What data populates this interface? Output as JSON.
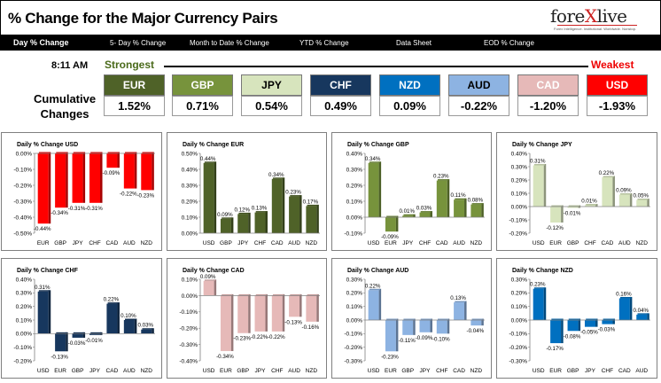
{
  "header": {
    "title": "% Change for the Major Currency Pairs",
    "logo": {
      "pre": "fore",
      "x": "X",
      "post": "live",
      "tagline": "Forex Intelligence. Institutional. Worldwide. Nonstop."
    }
  },
  "tabs": [
    {
      "label": "Day % Change",
      "active": true
    },
    {
      "label": "5- Day % Change"
    },
    {
      "label": "Month to Date % Change"
    },
    {
      "label": "YTD % Change"
    },
    {
      "label": "Data Sheet"
    },
    {
      "label": "EOD % Change"
    }
  ],
  "time": "8:11 AM",
  "strongest_label": "Strongest",
  "weakest_label": "Weakest",
  "cumulative_label": [
    "Cumulative",
    "Changes"
  ],
  "currencies": [
    {
      "code": "EUR",
      "value": "1.52%",
      "bg": "#4f6228",
      "fg": "#ffffff"
    },
    {
      "code": "GBP",
      "value": "0.71%",
      "bg": "#77933c",
      "fg": "#ffffff"
    },
    {
      "code": "JPY",
      "value": "0.54%",
      "bg": "#d7e4bd",
      "fg": "#000000"
    },
    {
      "code": "CHF",
      "value": "0.49%",
      "bg": "#17375e",
      "fg": "#ffffff"
    },
    {
      "code": "NZD",
      "value": "0.09%",
      "bg": "#0070c0",
      "fg": "#ffffff"
    },
    {
      "code": "AUD",
      "value": "-0.22%",
      "bg": "#8db3e2",
      "fg": "#000000"
    },
    {
      "code": "CAD",
      "value": "-1.20%",
      "bg": "#e6b9b8",
      "fg": "#ffffff"
    },
    {
      "code": "USD",
      "value": "-1.93%",
      "bg": "#ff0000",
      "fg": "#ffffff"
    }
  ],
  "colors": {
    "green": "#4f6228",
    "mid_green": "#77933c",
    "light_green": "#d7e4bd",
    "navy": "#17375e",
    "blue": "#0070c0",
    "light_blue": "#8db3e2",
    "pink": "#e6b9b8",
    "red": "#ff0000"
  },
  "chart_data": [
    {
      "type": "bar",
      "title": "Daily % Change USD",
      "categories": [
        "EUR",
        "GBP",
        "JPY",
        "CHF",
        "CAD",
        "AUD",
        "NZD"
      ],
      "values": [
        -0.44,
        -0.34,
        -0.31,
        -0.31,
        -0.09,
        -0.22,
        -0.23
      ],
      "labels": [
        "-0.44%",
        "-0.34%",
        "-0.31%",
        "-0.31%",
        "-0.09%",
        "-0.22%",
        "-0.23%"
      ],
      "ylim": [
        -0.5,
        0
      ],
      "ticks": [
        "0.00%",
        "-0.10%",
        "-0.20%",
        "-0.30%",
        "-0.40%",
        "-0.50%"
      ],
      "color": "#ff0000"
    },
    {
      "type": "bar",
      "title": "Daily % Change EUR",
      "categories": [
        "USD",
        "GBP",
        "JPY",
        "CHF",
        "CAD",
        "AUD",
        "NZD"
      ],
      "values": [
        0.44,
        0.09,
        0.12,
        0.13,
        0.34,
        0.23,
        0.17
      ],
      "labels": [
        "0.44%",
        "0.09%",
        "0.12%",
        "0.13%",
        "0.34%",
        "0.23%",
        "0.17%"
      ],
      "ylim": [
        0,
        0.5
      ],
      "ticks": [
        "0.50%",
        "0.40%",
        "0.30%",
        "0.20%",
        "0.10%",
        "0.00%"
      ],
      "color": "#4f6228"
    },
    {
      "type": "bar",
      "title": "Daily % Change GBP",
      "categories": [
        "USD",
        "EUR",
        "JPY",
        "CHF",
        "CAD",
        "AUD",
        "NZD"
      ],
      "values": [
        0.34,
        -0.09,
        0.01,
        0.03,
        0.23,
        0.11,
        0.08
      ],
      "labels": [
        "0.34%",
        "-0.09%",
        "0.01%",
        "0.03%",
        "0.23%",
        "0.11%",
        "0.08%"
      ],
      "ylim": [
        -0.1,
        0.4
      ],
      "ticks": [
        "0.40%",
        "0.30%",
        "0.20%",
        "0.10%",
        "0.00%",
        "-0.10%"
      ],
      "color": "#77933c"
    },
    {
      "type": "bar",
      "title": "Daily % Change JPY",
      "categories": [
        "USD",
        "EUR",
        "GBP",
        "CHF",
        "CAD",
        "AUD",
        "NZD"
      ],
      "values": [
        0.31,
        -0.12,
        -0.01,
        0.01,
        0.22,
        0.09,
        0.05
      ],
      "labels": [
        "0.31%",
        "-0.12%",
        "-0.01%",
        "0.01%",
        "0.22%",
        "0.09%",
        "0.05%"
      ],
      "ylim": [
        -0.2,
        0.4
      ],
      "ticks": [
        "0.40%",
        "0.30%",
        "0.20%",
        "0.10%",
        "0.00%",
        "-0.10%",
        "-0.20%"
      ],
      "color": "#d7e4bd"
    },
    {
      "type": "bar",
      "title": "Daily % Change CHF",
      "categories": [
        "USD",
        "EUR",
        "GBP",
        "JPY",
        "CAD",
        "AUD",
        "NZD"
      ],
      "values": [
        0.31,
        -0.13,
        -0.03,
        -0.01,
        0.22,
        0.1,
        0.03
      ],
      "labels": [
        "0.31%",
        "-0.13%",
        "-0.03%",
        "-0.01%",
        "0.22%",
        "0.10%",
        "0.03%"
      ],
      "ylim": [
        -0.2,
        0.4
      ],
      "ticks": [
        "0.40%",
        "0.30%",
        "0.20%",
        "0.10%",
        "0.00%",
        "-0.10%",
        "-0.20%"
      ],
      "color": "#17375e"
    },
    {
      "type": "bar",
      "title": "Daily % Change CAD",
      "categories": [
        "USD",
        "EUR",
        "GBP",
        "JPY",
        "CHF",
        "AUD",
        "NZD"
      ],
      "values": [
        0.09,
        -0.34,
        -0.23,
        -0.22,
        -0.22,
        -0.13,
        -0.16
      ],
      "labels": [
        "0.09%",
        "-0.34%",
        "-0.23%",
        "-0.22%",
        "-0.22%",
        "-0.13%",
        "-0.16%"
      ],
      "ylim": [
        -0.4,
        0.1
      ],
      "ticks": [
        "0.10%",
        "0.00%",
        "-0.10%",
        "-0.20%",
        "-0.30%",
        "-0.40%"
      ],
      "color": "#e6b9b8"
    },
    {
      "type": "bar",
      "title": "Daily % Change AUD",
      "categories": [
        "USD",
        "EUR",
        "GBP",
        "JPY",
        "CHF",
        "CAD",
        "NZD"
      ],
      "values": [
        0.22,
        -0.23,
        -0.11,
        -0.09,
        -0.1,
        0.13,
        -0.04
      ],
      "labels": [
        "0.22%",
        "-0.23%",
        "-0.11%",
        "-0.09%",
        "-0.10%",
        "0.13%",
        "-0.04%"
      ],
      "ylim": [
        -0.3,
        0.3
      ],
      "ticks": [
        "0.30%",
        "0.20%",
        "0.10%",
        "0.00%",
        "-0.10%",
        "-0.20%",
        "-0.30%"
      ],
      "color": "#8db3e2"
    },
    {
      "type": "bar",
      "title": "Daily % Change NZD",
      "categories": [
        "USD",
        "EUR",
        "GBP",
        "JPY",
        "CHF",
        "CAD",
        "AUD"
      ],
      "values": [
        0.23,
        -0.17,
        -0.08,
        -0.05,
        -0.03,
        0.16,
        0.04
      ],
      "labels": [
        "0.23%",
        "-0.17%",
        "-0.08%",
        "-0.05%",
        "-0.03%",
        "0.16%",
        "0.04%"
      ],
      "ylim": [
        -0.3,
        0.3
      ],
      "ticks": [
        "0.30%",
        "0.20%",
        "0.10%",
        "0.00%",
        "-0.10%",
        "-0.20%",
        "-0.30%"
      ],
      "color": "#0070c0"
    }
  ]
}
